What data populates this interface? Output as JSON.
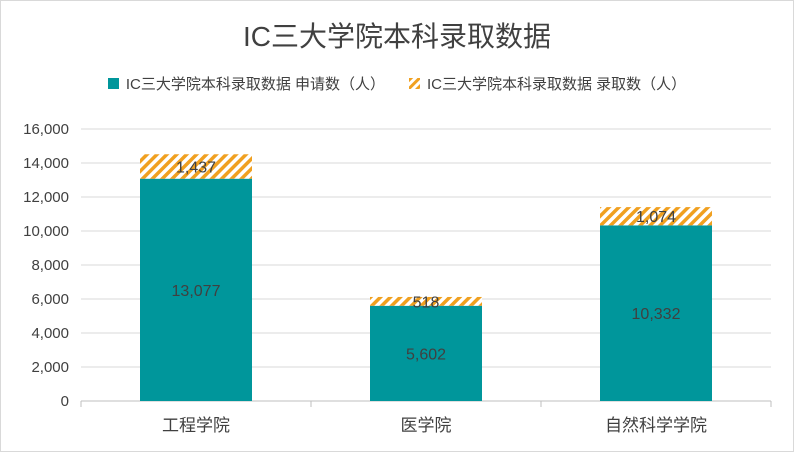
{
  "chart_data": {
    "type": "bar",
    "stacked": true,
    "title": "IC三大学院本科录取数据",
    "categories": [
      "工程学院",
      "医学院",
      "自然科学学院"
    ],
    "series": [
      {
        "name": "IC三大学院本科录取数据 申请数（人）",
        "values": [
          13077,
          5602,
          10332
        ],
        "color": "#00969b",
        "fill": "solid"
      },
      {
        "name": "IC三大学院本科录取数据 录取数（人）",
        "values": [
          1437,
          518,
          1074
        ],
        "color": "#f0a020",
        "fill": "hatched"
      }
    ],
    "data_labels": [
      [
        "13,077",
        "5,602",
        "10,332"
      ],
      [
        "1,437",
        "518",
        "1,074"
      ]
    ],
    "y_ticks": [
      "0",
      "2,000",
      "4,000",
      "6,000",
      "8,000",
      "10,000",
      "12,000",
      "14,000",
      "16,000"
    ],
    "ylim": [
      0,
      16000
    ],
    "grid": true,
    "legend_position": "top"
  }
}
